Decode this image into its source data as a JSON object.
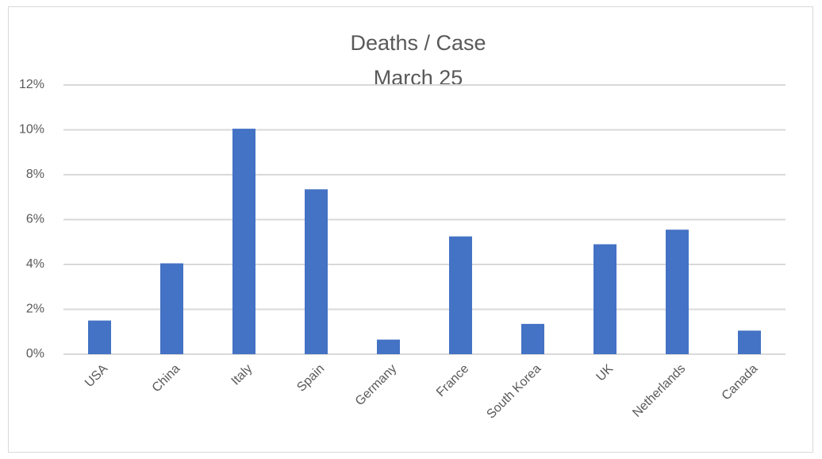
{
  "chart_data": {
    "type": "bar",
    "title": "Deaths / Case",
    "subtitle": "March 25",
    "categories": [
      "USA",
      "China",
      "Italy",
      "Spain",
      "Germany",
      "France",
      "South Korea",
      "UK",
      "Netherlands",
      "Canada"
    ],
    "values": [
      1.5,
      4.05,
      10.05,
      7.35,
      0.65,
      5.25,
      1.35,
      4.9,
      5.55,
      1.05
    ],
    "color": "#4472c4",
    "ylim": [
      0,
      12
    ],
    "yticks": [
      {
        "value": 0,
        "label": "0%"
      },
      {
        "value": 2,
        "label": "2%"
      },
      {
        "value": 4,
        "label": "4%"
      },
      {
        "value": 6,
        "label": "6%"
      },
      {
        "value": 8,
        "label": "8%"
      },
      {
        "value": 10,
        "label": "10%"
      },
      {
        "value": 12,
        "label": "12%"
      }
    ],
    "grid": true
  }
}
